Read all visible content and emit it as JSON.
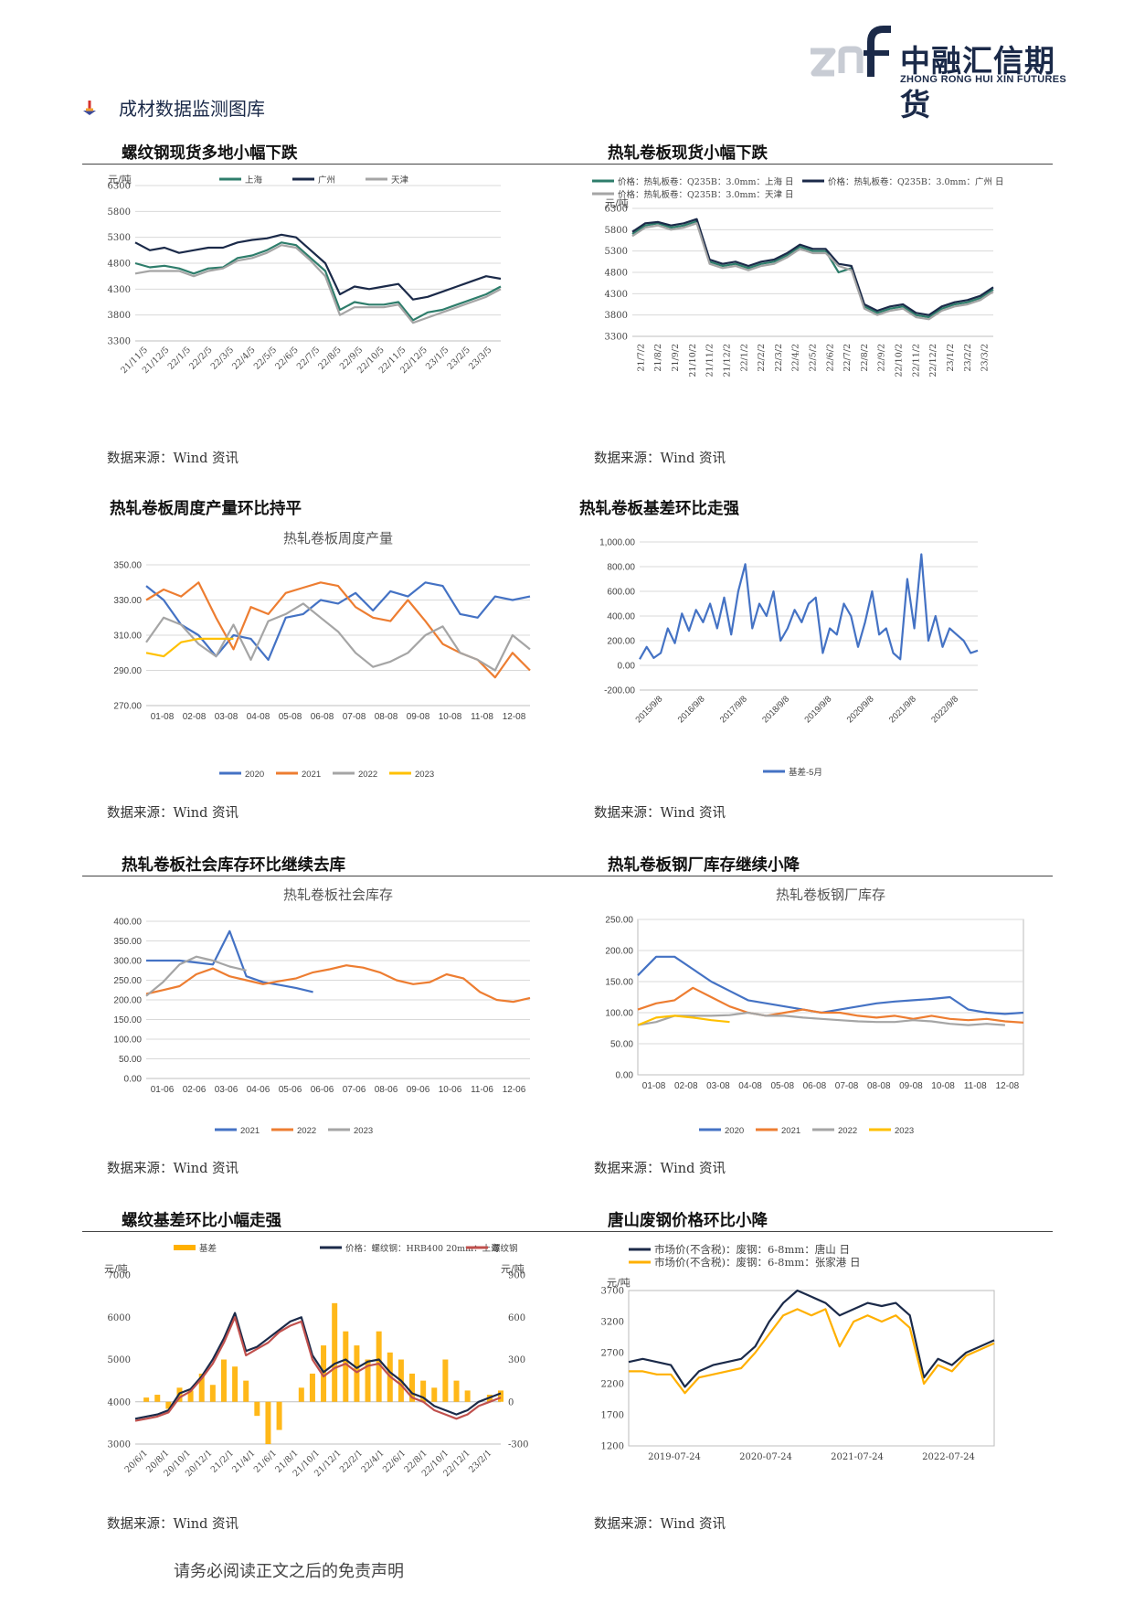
{
  "header": {
    "logo_mark": "znf",
    "company_cn": "中融汇信期货",
    "company_en": "ZHONG RONG HUI XIN FUTURES",
    "colors": {
      "brand": "#1b2a49",
      "mark_light": "#c8ccd4"
    }
  },
  "section": {
    "title": "成材数据监测图库",
    "bullet_icon": "pin-icon"
  },
  "panels": [
    {
      "title": "螺纹钢现货多地小幅下跌",
      "source": "数据来源：Wind 资讯"
    },
    {
      "title": "热轧卷板现货小幅下跌",
      "source": "数据来源：Wind 资讯"
    },
    {
      "title": "热轧卷板周度产量环比持平",
      "source": "数据来源：Wind 资讯"
    },
    {
      "title": "热轧卷板基差环比走强",
      "source": "数据来源：Wind 资讯"
    },
    {
      "title": "热轧卷板社会库存环比继续去库",
      "source": "数据来源：Wind 资讯"
    },
    {
      "title": "热轧卷板钢厂库存继续小降",
      "source": "数据来源：Wind 资讯"
    },
    {
      "title": "螺纹基差环比小幅走强",
      "source": "数据来源：Wind 资讯"
    },
    {
      "title": "唐山废钢价格环比小降",
      "source": "数据来源：Wind 资讯"
    }
  ],
  "footer": {
    "disclaimer": "请务必阅读正文之后的免责声明"
  },
  "chart_data": [
    {
      "type": "line",
      "ylabel": "元/吨",
      "ylim": [
        3300,
        6300
      ],
      "yticks": [
        3300,
        3800,
        4300,
        4800,
        5300,
        5800,
        6300
      ],
      "xticks": [
        "21/11/5",
        "21/12/5",
        "22/1/5",
        "22/2/5",
        "22/3/5",
        "22/4/5",
        "22/5/5",
        "22/6/5",
        "22/7/5",
        "22/8/5",
        "22/9/5",
        "22/10/5",
        "22/11/5",
        "22/12/5",
        "23/1/5",
        "23/2/5",
        "23/3/5"
      ],
      "legend_position": "top",
      "series": [
        {
          "name": "上海",
          "color": "#2e7d6b",
          "values": [
            4800,
            4720,
            4750,
            4700,
            4600,
            4700,
            4720,
            4900,
            4950,
            5050,
            5200,
            5150,
            4900,
            4650,
            3900,
            4050,
            4000,
            4000,
            4050,
            3700,
            3850,
            3900,
            4000,
            4100,
            4200,
            4350
          ]
        },
        {
          "name": "广州",
          "color": "#1b2a49",
          "values": [
            5200,
            5050,
            5100,
            5000,
            5050,
            5100,
            5100,
            5200,
            5250,
            5280,
            5350,
            5300,
            5050,
            4800,
            4200,
            4350,
            4300,
            4350,
            4400,
            4100,
            4150,
            4250,
            4350,
            4450,
            4550,
            4500
          ]
        },
        {
          "name": "天津",
          "color": "#a5a5a5",
          "values": [
            4600,
            4650,
            4650,
            4650,
            4550,
            4650,
            4700,
            4850,
            4900,
            5000,
            5150,
            5100,
            4850,
            4550,
            3800,
            3950,
            3950,
            3950,
            4000,
            3650,
            3750,
            3850,
            3950,
            4050,
            4150,
            4300
          ]
        }
      ]
    },
    {
      "type": "line",
      "ylabel": "元/吨",
      "ylim": [
        3300,
        6300
      ],
      "yticks": [
        3300,
        3800,
        4300,
        4800,
        5300,
        5800,
        6300
      ],
      "xticks": [
        "21/7/2",
        "21/8/2",
        "21/9/2",
        "21/10/2",
        "21/11/2",
        "21/12/2",
        "22/1/2",
        "22/2/2",
        "22/3/2",
        "22/4/2",
        "22/5/2",
        "22/6/2",
        "22/7/2",
        "22/8/2",
        "22/9/2",
        "22/10/2",
        "22/11/2",
        "22/12/2",
        "23/1/2",
        "23/2/2",
        "23/3/2"
      ],
      "legend_position": "top",
      "series": [
        {
          "name": "价格：热轧板卷：Q235B：3.0mm：上海 日",
          "color": "#2e7d6b",
          "values": [
            5700,
            5900,
            5950,
            5850,
            5900,
            6000,
            5050,
            4950,
            5000,
            4900,
            5000,
            5050,
            5200,
            5400,
            5300,
            5300,
            4800,
            4900,
            4000,
            3850,
            3950,
            4000,
            3800,
            3750,
            3950,
            4050,
            4100,
            4200,
            4400
          ]
        },
        {
          "name": "价格：热轧板卷：Q235B：3.0mm：广州 日",
          "color": "#1b2a49",
          "values": [
            5750,
            5950,
            5980,
            5900,
            5950,
            6050,
            5100,
            5000,
            5050,
            4950,
            5050,
            5100,
            5250,
            5450,
            5350,
            5350,
            5000,
            4950,
            4050,
            3900,
            4000,
            4050,
            3850,
            3800,
            4000,
            4100,
            4150,
            4250,
            4450
          ]
        },
        {
          "name": "价格：热轧板卷：Q235B：3.0mm：天津 日",
          "color": "#a5a5a5",
          "values": [
            5650,
            5850,
            5900,
            5800,
            5850,
            5950,
            5000,
            4900,
            4950,
            4850,
            4950,
            5000,
            5150,
            5350,
            5250,
            5250,
            4950,
            4850,
            3950,
            3800,
            3900,
            3950,
            3750,
            3700,
            3900,
            4000,
            4050,
            4150,
            4350
          ]
        }
      ]
    },
    {
      "type": "line",
      "title": "热轧卷板周度产量",
      "ylim": [
        270,
        350
      ],
      "yticks": [
        "270.00",
        "290.00",
        "310.00",
        "330.00",
        "350.00"
      ],
      "xticks": [
        "01-08",
        "02-08",
        "03-08",
        "04-08",
        "05-08",
        "06-08",
        "07-08",
        "08-08",
        "09-08",
        "10-08",
        "11-08",
        "12-08"
      ],
      "legend_position": "bottom",
      "series": [
        {
          "name": "2020",
          "color": "#4472c4",
          "values": [
            338,
            330,
            316,
            310,
            298,
            310,
            308,
            296,
            320,
            322,
            330,
            328,
            334,
            324,
            335,
            332,
            340,
            338,
            322,
            320,
            332,
            330,
            332
          ]
        },
        {
          "name": "2021",
          "color": "#ed7d31",
          "values": [
            330,
            336,
            332,
            340,
            320,
            302,
            326,
            322,
            334,
            337,
            340,
            338,
            326,
            320,
            318,
            330,
            318,
            305,
            300,
            296,
            286,
            300,
            290
          ]
        },
        {
          "name": "2022",
          "color": "#a5a5a5",
          "values": [
            306,
            320,
            316,
            305,
            298,
            316,
            296,
            318,
            322,
            328,
            320,
            312,
            300,
            292,
            295,
            300,
            310,
            315,
            300,
            296,
            290,
            310,
            302
          ]
        },
        {
          "name": "2023",
          "color": "#ffc000",
          "values": [
            300,
            298,
            306,
            308,
            308,
            308
          ]
        }
      ]
    },
    {
      "type": "line",
      "ylim": [
        -200,
        1000
      ],
      "yticks": [
        "-200.00",
        "0.00",
        "200.00",
        "400.00",
        "600.00",
        "800.00",
        "1,000.00"
      ],
      "xticks": [
        "2015/9/8",
        "2016/9/8",
        "2017/9/8",
        "2018/9/8",
        "2019/9/8",
        "2020/9/8",
        "2021/9/8",
        "2022/9/8"
      ],
      "legend_position": "bottom",
      "series": [
        {
          "name": "基差-5月",
          "color": "#4472c4",
          "values": [
            50,
            150,
            60,
            100,
            300,
            180,
            420,
            280,
            450,
            350,
            500,
            300,
            550,
            250,
            600,
            820,
            300,
            500,
            400,
            600,
            200,
            300,
            450,
            350,
            500,
            550,
            100,
            300,
            250,
            500,
            400,
            150,
            350,
            600,
            250,
            300,
            100,
            50,
            700,
            300,
            900,
            200,
            400,
            150,
            300,
            250,
            200,
            100,
            120
          ]
        }
      ]
    },
    {
      "type": "line",
      "title": "热轧卷板社会库存",
      "ylim": [
        0,
        400
      ],
      "yticks": [
        "0.00",
        "50.00",
        "100.00",
        "150.00",
        "200.00",
        "250.00",
        "300.00",
        "350.00",
        "400.00"
      ],
      "xticks": [
        "01-06",
        "02-06",
        "03-06",
        "04-06",
        "05-06",
        "06-06",
        "07-06",
        "08-06",
        "09-06",
        "10-06",
        "11-06",
        "12-06"
      ],
      "legend_position": "bottom",
      "series": [
        {
          "name": "2021",
          "color": "#4472c4",
          "values": [
            300,
            300,
            300,
            295,
            290,
            375,
            260,
            245,
            238,
            230,
            220
          ]
        },
        {
          "name": "2022",
          "color": "#ed7d31",
          "values": [
            215,
            225,
            235,
            265,
            280,
            260,
            250,
            240,
            248,
            255,
            270,
            278,
            288,
            282,
            270,
            250,
            240,
            245,
            265,
            255,
            220,
            200,
            195,
            205
          ]
        },
        {
          "name": "2023",
          "color": "#a5a5a5",
          "values": [
            210,
            245,
            290,
            310,
            300,
            285,
            275
          ]
        }
      ]
    },
    {
      "type": "line",
      "title": "热轧卷板钢厂库存",
      "ylim": [
        0,
        250
      ],
      "yticks": [
        "0.00",
        "50.00",
        "100.00",
        "150.00",
        "200.00",
        "250.00"
      ],
      "xticks": [
        "01-08",
        "02-08",
        "03-08",
        "04-08",
        "05-08",
        "06-08",
        "07-08",
        "08-08",
        "09-08",
        "10-08",
        "11-08",
        "12-08"
      ],
      "legend_position": "bottom",
      "series": [
        {
          "name": "2020",
          "color": "#4472c4",
          "values": [
            160,
            190,
            190,
            170,
            150,
            135,
            120,
            115,
            110,
            105,
            100,
            105,
            110,
            115,
            118,
            120,
            122,
            125,
            105,
            100,
            98,
            100
          ]
        },
        {
          "name": "2021",
          "color": "#ed7d31",
          "values": [
            105,
            115,
            120,
            140,
            125,
            110,
            100,
            95,
            100,
            105,
            100,
            100,
            95,
            92,
            95,
            90,
            95,
            90,
            88,
            90,
            86,
            84
          ]
        },
        {
          "name": "2022",
          "color": "#a5a5a5",
          "values": [
            80,
            85,
            95,
            95,
            95,
            96,
            100,
            95,
            95,
            92,
            90,
            88,
            86,
            85,
            85,
            88,
            86,
            82,
            80,
            82,
            80
          ]
        },
        {
          "name": "2023",
          "color": "#ffc000",
          "values": [
            80,
            92,
            95,
            92,
            88,
            85
          ]
        }
      ]
    },
    {
      "type": "line",
      "ylabel": "元/吨",
      "y2label": "元/吨",
      "ylim": [
        3000,
        7000
      ],
      "y2lim": [
        -300,
        900
      ],
      "yticks": [
        3000,
        4000,
        5000,
        6000,
        7000
      ],
      "y2ticks": [
        -300,
        0,
        300,
        600,
        900
      ],
      "xticks": [
        "20/6/1",
        "20/8/1",
        "20/10/1",
        "20/12/1",
        "21/2/1",
        "21/4/1",
        "21/6/1",
        "21/8/1",
        "21/10/1",
        "21/12/1",
        "22/2/1",
        "22/4/1",
        "22/6/1",
        "22/8/1",
        "22/10/1",
        "22/12/1",
        "23/2/1"
      ],
      "legend_position": "top",
      "series": [
        {
          "name": "基差",
          "color": "#ffb000",
          "axis": "right",
          "values": [
            0,
            30,
            50,
            -50,
            100,
            80,
            200,
            120,
            300,
            250,
            150,
            -100,
            -300,
            -200,
            0,
            100,
            200,
            400,
            700,
            500,
            400,
            300,
            500,
            350,
            300,
            200,
            150,
            100,
            300,
            150,
            80,
            0,
            50,
            80
          ]
        },
        {
          "name": "价格：螺纹钢：HRB400 20mm：上海",
          "color": "#1b2a49",
          "axis": "left",
          "values": [
            3600,
            3650,
            3700,
            3800,
            4200,
            4300,
            4600,
            5000,
            5500,
            6100,
            5200,
            5300,
            5500,
            5700,
            5900,
            6000,
            5100,
            4700,
            4900,
            5000,
            4800,
            4950,
            5000,
            4700,
            4500,
            4200,
            4100,
            3900,
            3800,
            3700,
            3800,
            4000,
            4100,
            4200
          ]
        },
        {
          "name": "螺纹钢",
          "color": "#c0504d",
          "axis": "left",
          "values": [
            3550,
            3600,
            3650,
            3750,
            4100,
            4250,
            4550,
            4900,
            5400,
            6000,
            5100,
            5250,
            5400,
            5650,
            5800,
            5900,
            5000,
            4600,
            4800,
            4900,
            4700,
            4850,
            4900,
            4600,
            4400,
            4100,
            4000,
            3800,
            3700,
            3600,
            3700,
            3900,
            4000,
            4100
          ]
        }
      ]
    },
    {
      "type": "line",
      "ylabel": "元/吨",
      "ylim": [
        1200,
        3700
      ],
      "yticks": [
        1200,
        1700,
        2200,
        2700,
        3200,
        3700
      ],
      "xticks": [
        "2019-07-24",
        "2020-07-24",
        "2021-07-24",
        "2022-07-24"
      ],
      "legend_position": "top-left",
      "series": [
        {
          "name": "市场价(不含税)：废钢：6-8mm：唐山 日",
          "color": "#1b2a49",
          "values": [
            2550,
            2600,
            2550,
            2500,
            2150,
            2400,
            2500,
            2550,
            2600,
            2800,
            3200,
            3500,
            3700,
            3600,
            3500,
            3300,
            3400,
            3500,
            3450,
            3500,
            3300,
            2300,
            2600,
            2500,
            2700,
            2800,
            2900
          ]
        },
        {
          "name": "市场价(不含税)：废钢：6-8mm：张家港 日",
          "color": "#ffb000",
          "values": [
            2400,
            2400,
            2350,
            2350,
            2050,
            2300,
            2350,
            2400,
            2450,
            2700,
            3000,
            3300,
            3400,
            3300,
            3400,
            2800,
            3200,
            3300,
            3200,
            3300,
            3100,
            2200,
            2500,
            2400,
            2650,
            2750,
            2850
          ]
        }
      ]
    }
  ]
}
